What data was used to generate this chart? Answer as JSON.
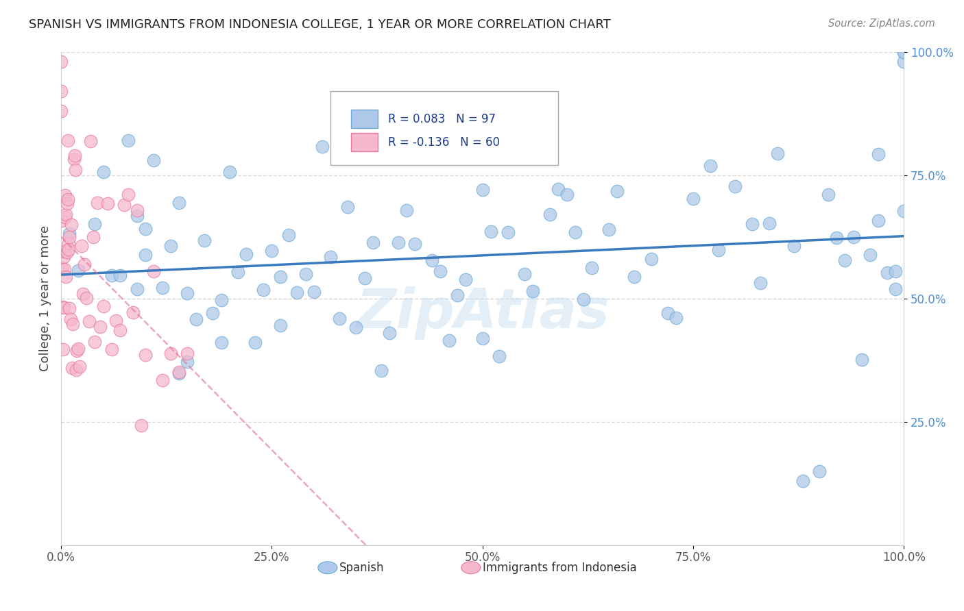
{
  "title": "SPANISH VS IMMIGRANTS FROM INDONESIA COLLEGE, 1 YEAR OR MORE CORRELATION CHART",
  "source_text": "Source: ZipAtlas.com",
  "ylabel": "College, 1 year or more",
  "watermark": "ZipAtlas",
  "legend_spanish": "Spanish",
  "legend_indonesia": "Immigrants from Indonesia",
  "R_spanish": 0.083,
  "N_spanish": 97,
  "R_indonesia": -0.136,
  "N_indonesia": 60,
  "color_spanish": "#adc8e8",
  "color_indonesia": "#f5b8ce",
  "edge_color_spanish": "#6aaad4",
  "edge_color_indonesia": "#e87898",
  "trend_color_spanish": "#3a7abf",
  "trend_color_indonesia": "#e07898",
  "background_color": "#ffffff",
  "watermark_color": "#c8dff0",
  "grid_color": "#d8d8d8",
  "tick_color_y": "#4a90d9",
  "tick_color_x": "#555555",
  "title_color": "#222222",
  "source_color": "#888888",
  "legend_text_color": "#1a3a8a"
}
